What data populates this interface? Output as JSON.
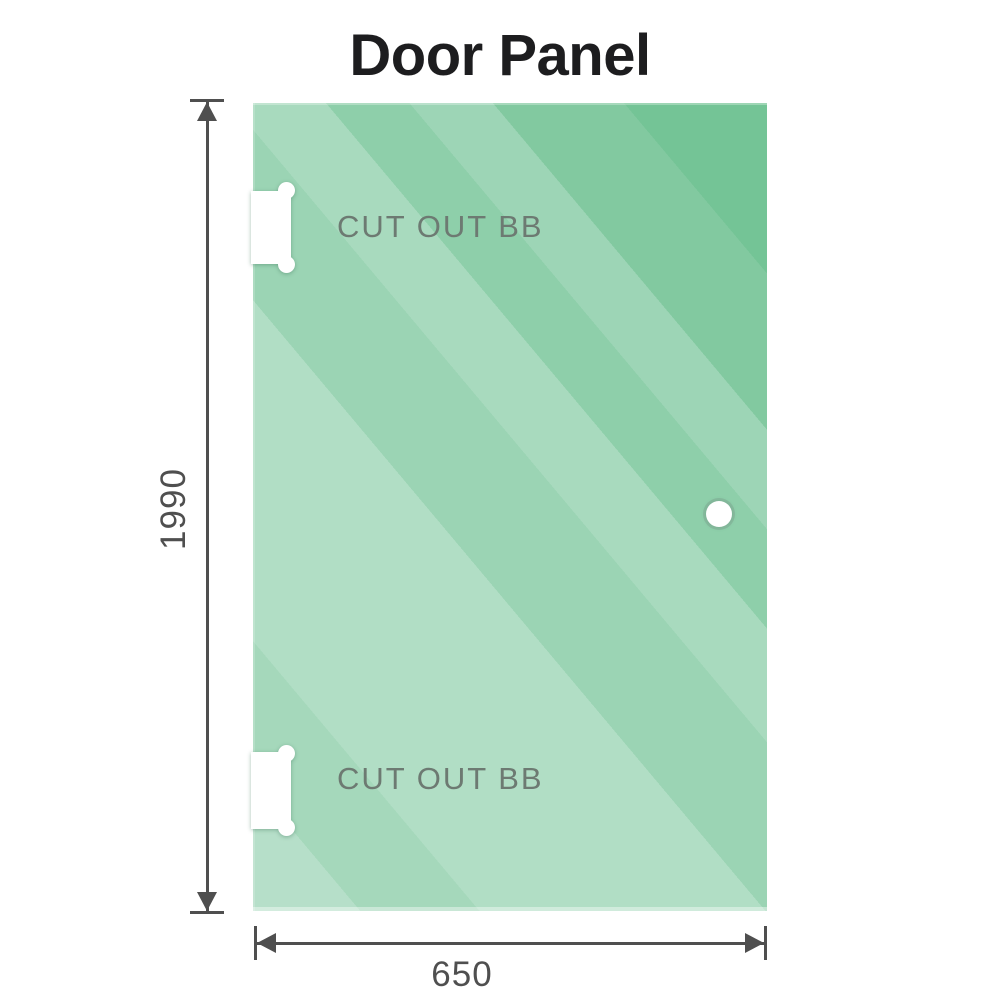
{
  "title": "Door Panel",
  "panel": {
    "top_cutout_label": "CUT OUT BB",
    "bottom_cutout_label": "CUT OUT BB"
  },
  "dimensions": {
    "height_label": "1990",
    "width_label": "650"
  },
  "icons": {
    "hinge_cutout_top": "hinge-notch-shape",
    "hinge_cutout_bottom": "hinge-notch-shape",
    "handle_hole": "circle-hole",
    "height_dimension": "double-arrow-vertical",
    "width_dimension": "double-arrow-horizontal"
  },
  "colors": {
    "glass_light": "#b6dfc9",
    "glass_mid": "#9bd4b4",
    "glass_dark": "#74c496",
    "dimension_line": "#4f4f4f",
    "cutout_text": "#6d7a72",
    "title_text": "#1d1d1f",
    "background": "#ffffff"
  }
}
